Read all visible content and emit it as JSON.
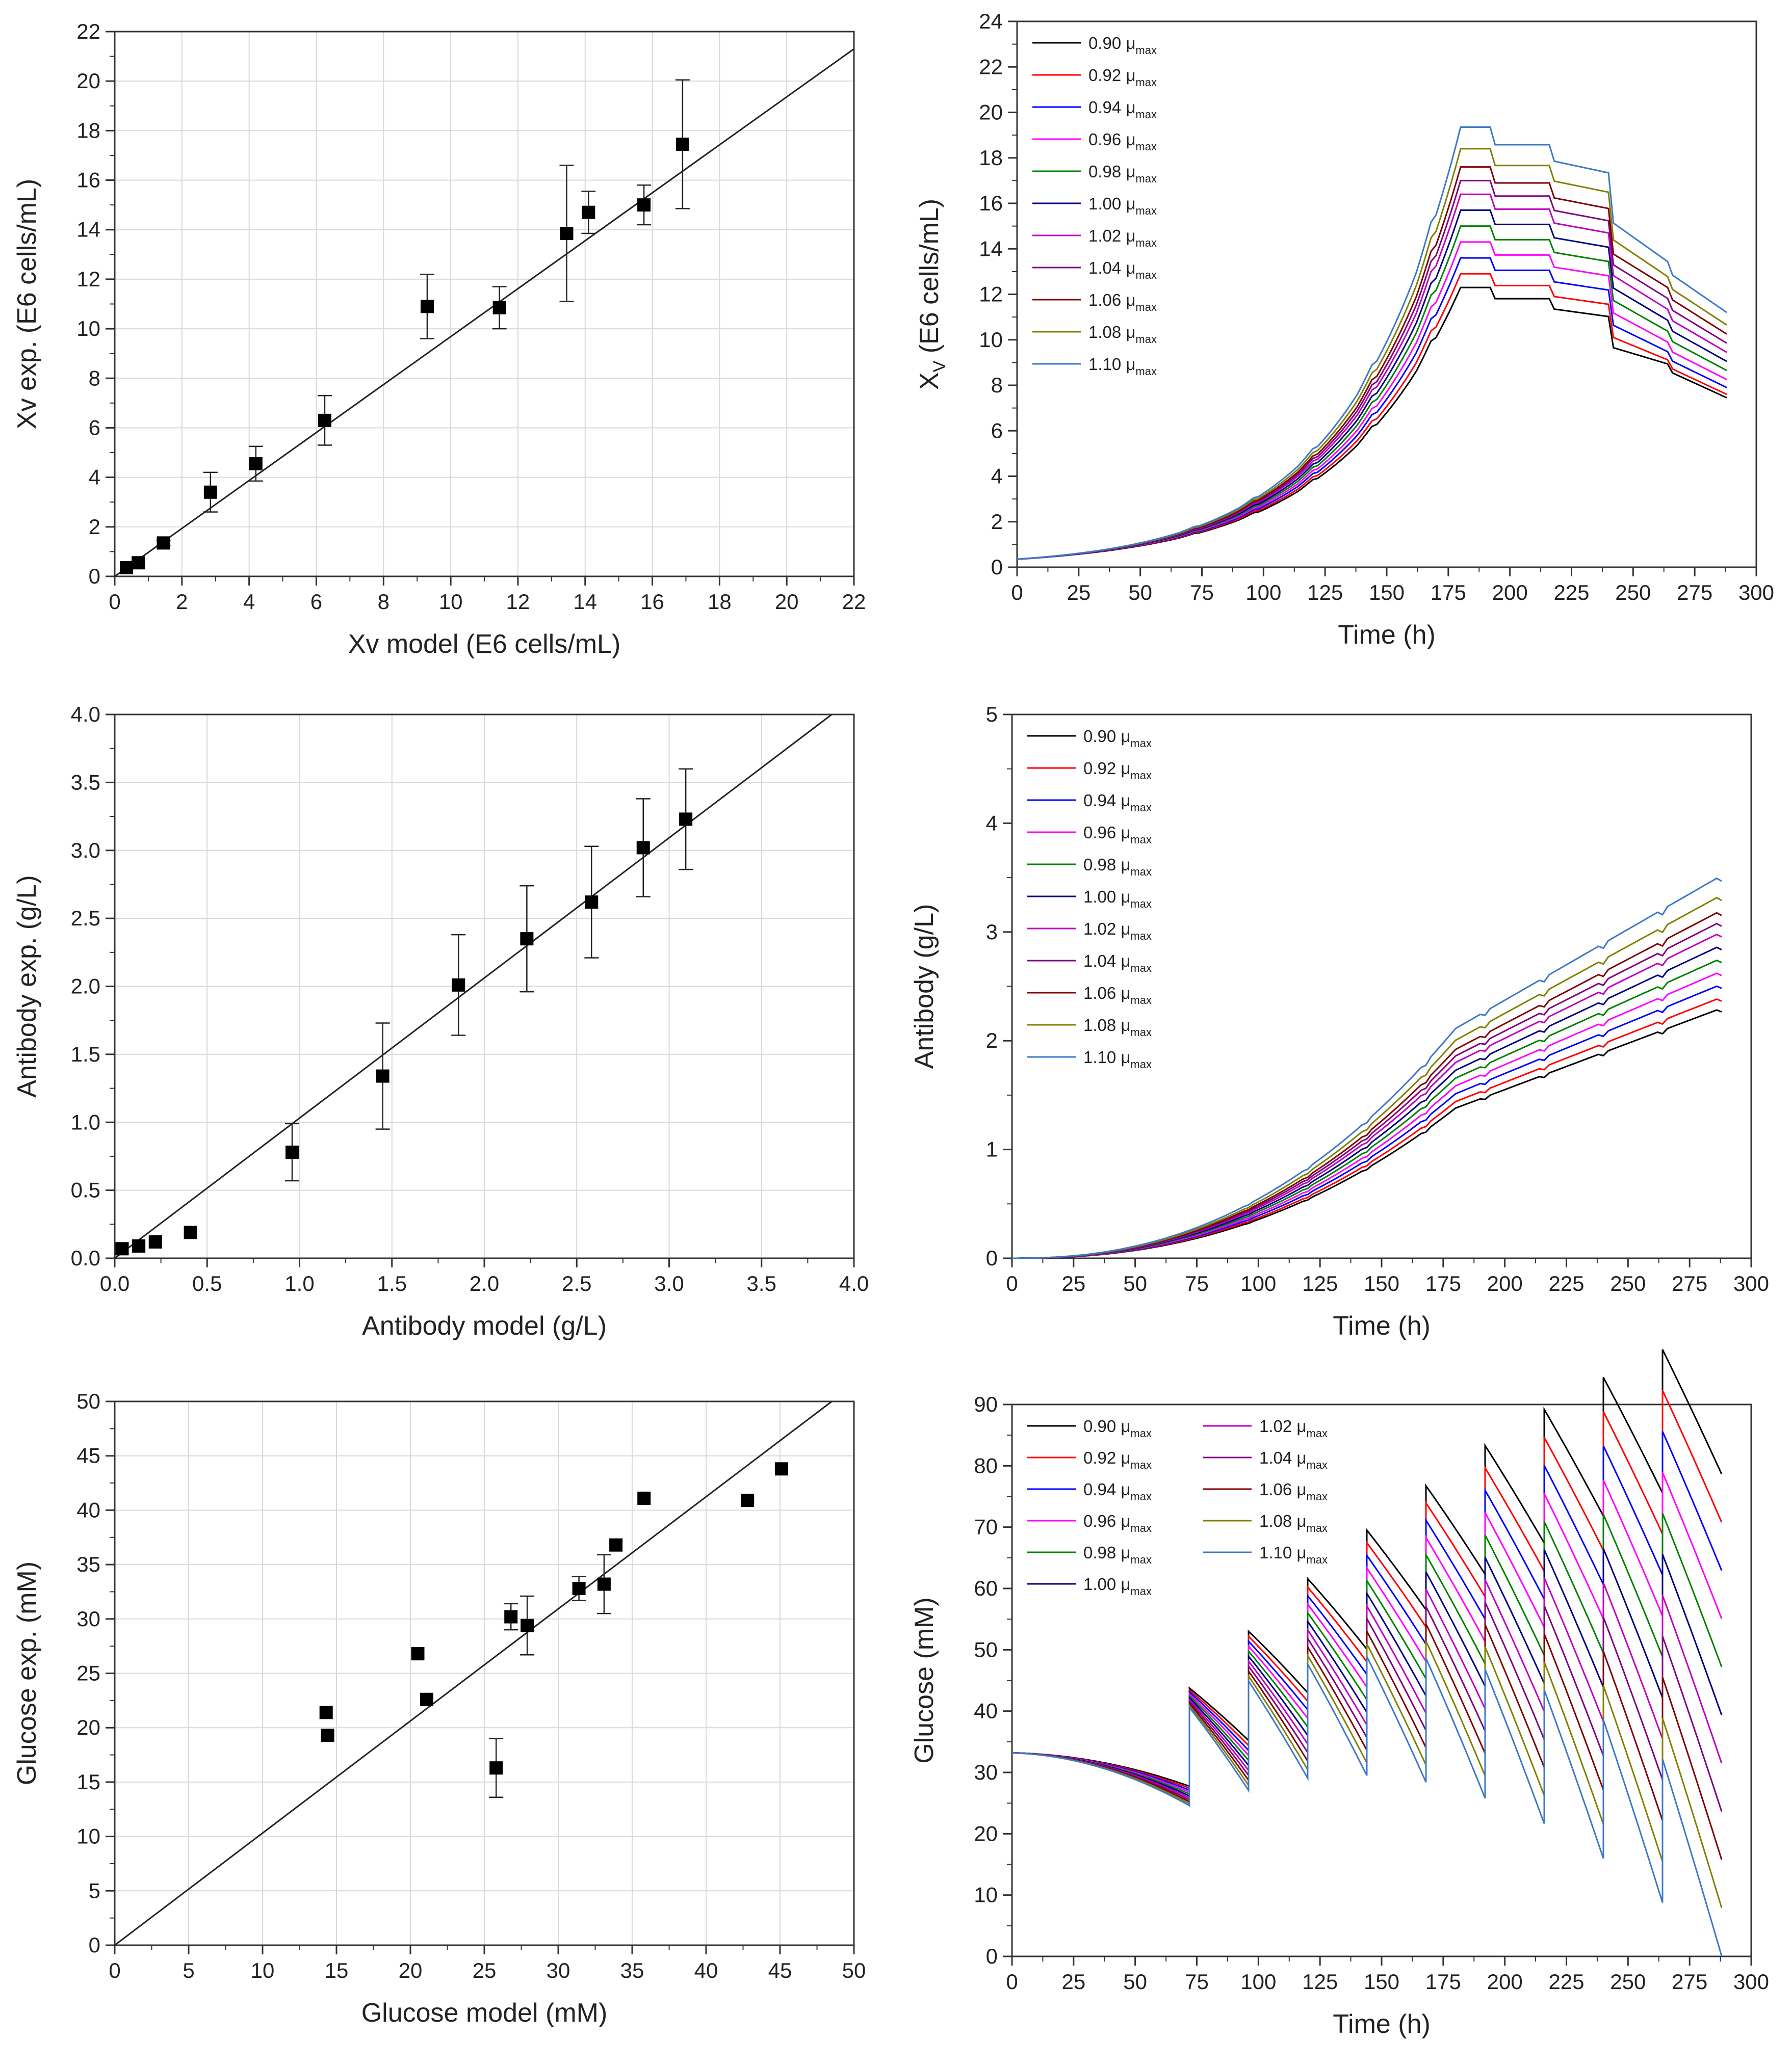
{
  "chart_data": [
    {
      "id": "xv_parity",
      "type": "scatter",
      "title": "",
      "xlabel": "Xv model (E6 cells/mL)",
      "ylabel": "Xv exp. (E6 cells/mL)",
      "xlim": [
        0,
        22
      ],
      "ylim": [
        0,
        22
      ],
      "xticks": [
        "0",
        "2",
        "4",
        "6",
        "8",
        "10",
        "12",
        "14",
        "16",
        "18",
        "20",
        "22"
      ],
      "yticks": [
        "0",
        "2",
        "4",
        "6",
        "8",
        "10",
        "12",
        "14",
        "16",
        "18",
        "20",
        "22"
      ],
      "grid": true,
      "parity_line": [
        [
          0,
          0
        ],
        [
          22,
          21.3
        ]
      ],
      "points": [
        {
          "x": 0.35,
          "y": 0.35,
          "err": 0
        },
        {
          "x": 0.7,
          "y": 0.55,
          "err": 0
        },
        {
          "x": 1.45,
          "y": 1.35,
          "err": 0.1
        },
        {
          "x": 2.85,
          "y": 3.4,
          "err": 0.8
        },
        {
          "x": 4.2,
          "y": 4.55,
          "err": 0.7
        },
        {
          "x": 6.25,
          "y": 6.3,
          "err": 1.0
        },
        {
          "x": 9.3,
          "y": 10.9,
          "err": 1.3
        },
        {
          "x": 11.45,
          "y": 10.85,
          "err": 0.85
        },
        {
          "x": 13.45,
          "y": 13.85,
          "err": 2.75
        },
        {
          "x": 14.1,
          "y": 14.7,
          "err": 0.85
        },
        {
          "x": 15.75,
          "y": 15.0,
          "err": 0.8
        },
        {
          "x": 16.9,
          "y": 17.45,
          "err": 2.6
        }
      ]
    },
    {
      "id": "xv_time",
      "type": "line",
      "title": "",
      "xlabel": "Time (h)",
      "ylabel": "X",
      "ylabel_sub": "V",
      "ylabel_suffix": " (E6 cells/mL)",
      "xlim": [
        0,
        300
      ],
      "ylim": [
        0,
        24
      ],
      "xticks": [
        "0",
        "25",
        "50",
        "75",
        "100",
        "125",
        "150",
        "175",
        "200",
        "225",
        "250",
        "275",
        "300"
      ],
      "yticks": [
        "0",
        "2",
        "4",
        "6",
        "8",
        "10",
        "12",
        "14",
        "16",
        "18",
        "20",
        "22",
        "24"
      ],
      "grid": false,
      "legend_position": "top-left",
      "series_model": "viable cell density profile for each growth-rate multiple of mu_max",
      "series": [
        {
          "name": "0.90",
          "suffix": "μ",
          "sub": "max",
          "color": "#000000",
          "peak": 12.3,
          "final": 7.45
        },
        {
          "name": "0.92",
          "suffix": "μ",
          "sub": "max",
          "color": "#ff0000",
          "peak": 12.9,
          "final": 7.6
        },
        {
          "name": "0.94",
          "suffix": "μ",
          "sub": "max",
          "color": "#0000ff",
          "peak": 13.6,
          "final": 7.9
        },
        {
          "name": "0.96",
          "suffix": "μ",
          "sub": "max",
          "color": "#ff00ff",
          "peak": 14.3,
          "final": 8.25
        },
        {
          "name": "0.98",
          "suffix": "μ",
          "sub": "max",
          "color": "#008000",
          "peak": 15.0,
          "final": 8.65
        },
        {
          "name": "1.00",
          "suffix": "μ",
          "sub": "max",
          "color": "#000080",
          "peak": 15.7,
          "final": 9.05
        },
        {
          "name": "1.02",
          "suffix": "μ",
          "sub": "max",
          "color": "#bf00bf",
          "peak": 16.4,
          "final": 9.45
        },
        {
          "name": "1.04",
          "suffix": "μ",
          "sub": "max",
          "color": "#800080",
          "peak": 17.0,
          "final": 9.85
        },
        {
          "name": "1.06",
          "suffix": "μ",
          "sub": "max",
          "color": "#800000",
          "peak": 17.6,
          "final": 10.25
        },
        {
          "name": "1.08",
          "suffix": "μ",
          "sub": "max",
          "color": "#808000",
          "peak": 18.4,
          "final": 10.65
        },
        {
          "name": "1.10",
          "suffix": "μ",
          "sub": "max",
          "color": "#3c78c8",
          "peak": 19.35,
          "final": 11.2
        }
      ]
    },
    {
      "id": "antibody_parity",
      "type": "scatter",
      "title": "",
      "xlabel": "Antibody model (g/L)",
      "ylabel": "Antibody exp. (g/L)",
      "xlim": [
        0,
        4
      ],
      "ylim": [
        0,
        4
      ],
      "xticks": [
        "0.0",
        "0.5",
        "1.0",
        "1.5",
        "2.0",
        "2.5",
        "3.0",
        "3.5",
        "4.0"
      ],
      "yticks": [
        "0.0",
        "0.5",
        "1.0",
        "1.5",
        "2.0",
        "2.5",
        "3.0",
        "3.5",
        "4.0"
      ],
      "grid": true,
      "parity_line": [
        [
          0,
          0
        ],
        [
          3.88,
          4.0
        ]
      ],
      "points": [
        {
          "x": 0.04,
          "y": 0.07,
          "err": 0
        },
        {
          "x": 0.13,
          "y": 0.09,
          "err": 0
        },
        {
          "x": 0.22,
          "y": 0.12,
          "err": 0
        },
        {
          "x": 0.41,
          "y": 0.19,
          "err": 0
        },
        {
          "x": 0.96,
          "y": 0.78,
          "err": 0.21
        },
        {
          "x": 1.45,
          "y": 1.34,
          "err": 0.39
        },
        {
          "x": 1.86,
          "y": 2.01,
          "err": 0.37
        },
        {
          "x": 2.23,
          "y": 2.35,
          "err": 0.39
        },
        {
          "x": 2.58,
          "y": 2.62,
          "err": 0.41
        },
        {
          "x": 2.86,
          "y": 3.02,
          "err": 0.36
        },
        {
          "x": 3.09,
          "y": 3.23,
          "err": 0.37
        }
      ]
    },
    {
      "id": "antibody_time",
      "type": "line",
      "title": "",
      "xlabel": "Time (h)",
      "ylabel": "Antibody (g/L)",
      "xlim": [
        0,
        300
      ],
      "ylim": [
        0,
        5
      ],
      "xticks": [
        "0",
        "25",
        "50",
        "75",
        "100",
        "125",
        "150",
        "175",
        "200",
        "225",
        "250",
        "275",
        "300"
      ],
      "yticks": [
        "0",
        "1",
        "2",
        "3",
        "4",
        "5"
      ],
      "grid": false,
      "legend_position": "top-left",
      "series": [
        {
          "name": "0.90",
          "suffix": "μ",
          "sub": "max",
          "color": "#000000",
          "final": 2.3
        },
        {
          "name": "0.92",
          "suffix": "μ",
          "sub": "max",
          "color": "#ff0000",
          "final": 2.4
        },
        {
          "name": "0.94",
          "suffix": "μ",
          "sub": "max",
          "color": "#0000ff",
          "final": 2.52
        },
        {
          "name": "0.96",
          "suffix": "μ",
          "sub": "max",
          "color": "#ff00ff",
          "final": 2.64
        },
        {
          "name": "0.98",
          "suffix": "μ",
          "sub": "max",
          "color": "#008000",
          "final": 2.76
        },
        {
          "name": "1.00",
          "suffix": "μ",
          "sub": "max",
          "color": "#000080",
          "final": 2.88
        },
        {
          "name": "1.02",
          "suffix": "μ",
          "sub": "max",
          "color": "#bf00bf",
          "final": 3.0
        },
        {
          "name": "1.04",
          "suffix": "μ",
          "sub": "max",
          "color": "#800080",
          "final": 3.1
        },
        {
          "name": "1.06",
          "suffix": "μ",
          "sub": "max",
          "color": "#800000",
          "final": 3.2
        },
        {
          "name": "1.08",
          "suffix": "μ",
          "sub": "max",
          "color": "#808000",
          "final": 3.34
        },
        {
          "name": "1.10",
          "suffix": "μ",
          "sub": "max",
          "color": "#3c78c8",
          "final": 3.52
        }
      ]
    },
    {
      "id": "glucose_parity",
      "type": "scatter",
      "title": "",
      "xlabel": "Glucose model (mM)",
      "ylabel": "Glucose exp. (mM)",
      "xlim": [
        0,
        50
      ],
      "ylim": [
        0,
        50
      ],
      "xticks": [
        "0",
        "5",
        "10",
        "15",
        "20",
        "25",
        "30",
        "35",
        "40",
        "45",
        "50"
      ],
      "yticks": [
        "0",
        "5",
        "10",
        "15",
        "20",
        "25",
        "30",
        "35",
        "40",
        "45",
        "50"
      ],
      "grid": true,
      "parity_line": [
        [
          0,
          0
        ],
        [
          48.5,
          50
        ]
      ],
      "points": [
        {
          "x": 14.3,
          "y": 21.4,
          "err": 0
        },
        {
          "x": 14.4,
          "y": 19.3,
          "err": 0
        },
        {
          "x": 20.5,
          "y": 26.8,
          "err": 0
        },
        {
          "x": 21.1,
          "y": 22.6,
          "err": 0
        },
        {
          "x": 25.8,
          "y": 16.3,
          "err": 2.7
        },
        {
          "x": 26.8,
          "y": 30.2,
          "err": 1.2
        },
        {
          "x": 27.9,
          "y": 29.4,
          "err": 2.7
        },
        {
          "x": 31.4,
          "y": 32.8,
          "err": 1.1
        },
        {
          "x": 33.1,
          "y": 33.2,
          "err": 2.7
        },
        {
          "x": 33.9,
          "y": 36.8,
          "err": 0
        },
        {
          "x": 35.8,
          "y": 41.1,
          "err": 0
        },
        {
          "x": 42.8,
          "y": 40.9,
          "err": 0
        },
        {
          "x": 45.1,
          "y": 43.8,
          "err": 0
        }
      ]
    },
    {
      "id": "glucose_time",
      "type": "line",
      "title": "",
      "xlabel": "Time (h)",
      "ylabel": "Glucose (mM)",
      "xlim": [
        0,
        300
      ],
      "ylim": [
        0,
        90
      ],
      "xticks": [
        "0",
        "25",
        "50",
        "75",
        "100",
        "125",
        "150",
        "175",
        "200",
        "225",
        "250",
        "275",
        "300"
      ],
      "yticks": [
        "0",
        "10",
        "20",
        "30",
        "40",
        "50",
        "60",
        "70",
        "80",
        "90"
      ],
      "grid": false,
      "legend_position": "top-left (two columns)",
      "feed_times_h": [
        72,
        96,
        120,
        144,
        168,
        192,
        216,
        240,
        264
      ],
      "series": [
        {
          "name": "0.90",
          "suffix": "μ",
          "sub": "max",
          "color": "#000000"
        },
        {
          "name": "0.92",
          "suffix": "μ",
          "sub": "max",
          "color": "#ff0000"
        },
        {
          "name": "0.94",
          "suffix": "μ",
          "sub": "max",
          "color": "#0000ff"
        },
        {
          "name": "0.96",
          "suffix": "μ",
          "sub": "max",
          "color": "#ff00ff"
        },
        {
          "name": "0.98",
          "suffix": "μ",
          "sub": "max",
          "color": "#008000"
        },
        {
          "name": "1.00",
          "suffix": "μ",
          "sub": "max",
          "color": "#000080"
        },
        {
          "name": "1.02",
          "suffix": "μ",
          "sub": "max",
          "color": "#bf00bf"
        },
        {
          "name": "1.04",
          "suffix": "μ",
          "sub": "max",
          "color": "#800080"
        },
        {
          "name": "1.06",
          "suffix": "μ",
          "sub": "max",
          "color": "#800000"
        },
        {
          "name": "1.08",
          "suffix": "μ",
          "sub": "max",
          "color": "#808000"
        },
        {
          "name": "1.10",
          "suffix": "μ",
          "sub": "max",
          "color": "#3c78c8"
        }
      ]
    }
  ]
}
